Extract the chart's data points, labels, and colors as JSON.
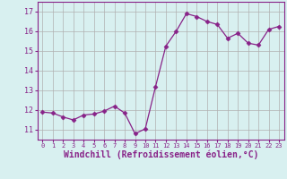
{
  "x": [
    0,
    1,
    2,
    3,
    4,
    5,
    6,
    7,
    8,
    9,
    10,
    11,
    12,
    13,
    14,
    15,
    16,
    17,
    18,
    19,
    20,
    21,
    22,
    23
  ],
  "y": [
    11.9,
    11.85,
    11.65,
    11.5,
    11.75,
    11.8,
    11.95,
    12.2,
    11.85,
    10.8,
    11.05,
    13.2,
    15.25,
    16.0,
    16.9,
    16.75,
    16.5,
    16.35,
    15.65,
    15.9,
    15.4,
    15.3,
    16.1,
    16.25
  ],
  "line_color": "#882288",
  "marker": "D",
  "marker_size": 2.5,
  "bg_color": "#d8f0f0",
  "grid_color": "#b0b0b0",
  "xlabel": "Windchill (Refroidissement éolien,°C)",
  "xlabel_fontsize": 7,
  "ylabel_ticks": [
    11,
    12,
    13,
    14,
    15,
    16,
    17
  ],
  "xtick_labels": [
    "0",
    "1",
    "2",
    "3",
    "4",
    "5",
    "6",
    "7",
    "8",
    "9",
    "10",
    "11",
    "12",
    "13",
    "14",
    "15",
    "16",
    "17",
    "18",
    "19",
    "20",
    "21",
    "22",
    "23"
  ],
  "ylim": [
    10.5,
    17.5
  ],
  "xlim": [
    -0.5,
    23.5
  ]
}
